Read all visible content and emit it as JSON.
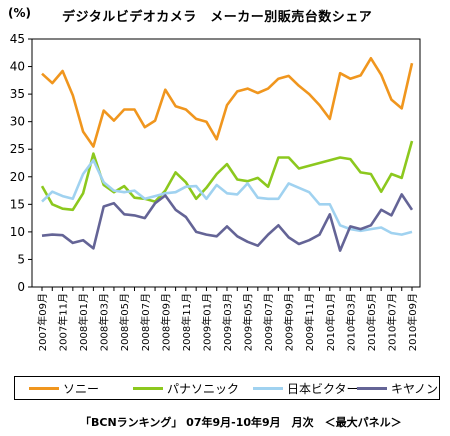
{
  "unit_label": "(%)",
  "chart_data": {
    "type": "line",
    "title": "デジタルビデオカメラ　メーカー別販売台数シェア",
    "ylim": [
      0,
      45
    ],
    "yticks": [
      0,
      5,
      10,
      15,
      20,
      25,
      30,
      35,
      40,
      45
    ],
    "grid": false,
    "legend_position": "bottom",
    "x": [
      "2007年09月",
      "2007年10月",
      "2007年11月",
      "2007年12月",
      "2008年01月",
      "2008年02月",
      "2008年03月",
      "2008年04月",
      "2008年05月",
      "2008年06月",
      "2008年07月",
      "2008年08月",
      "2008年09月",
      "2008年10月",
      "2008年11月",
      "2008年12月",
      "2009年01月",
      "2009年02月",
      "2009年03月",
      "2009年04月",
      "2009年05月",
      "2009年06月",
      "2009年07月",
      "2009年08月",
      "2009年09月",
      "2009年10月",
      "2009年11月",
      "2009年12月",
      "2010年01月",
      "2010年02月",
      "2010年03月",
      "2010年04月",
      "2010年05月",
      "2010年06月",
      "2010年07月",
      "2010年08月",
      "2010年09月"
    ],
    "x_tick_labels": [
      "2007年09月",
      "2007年11月",
      "2008年01月",
      "2008年03月",
      "2008年05月",
      "2008年07月",
      "2008年09月",
      "2008年11月",
      "2009年01月",
      "2009年03月",
      "2009年05月",
      "2009年07月",
      "2009年09月",
      "2009年11月",
      "2010年01月",
      "2010年03月",
      "2010年05月",
      "2010年07月",
      "2010年09月"
    ],
    "series": [
      {
        "name": "ソニー",
        "color": "#f0961e",
        "values": [
          38.7,
          37.0,
          39.2,
          34.8,
          28.2,
          25.5,
          32.0,
          30.2,
          32.2,
          32.2,
          29.0,
          30.2,
          35.8,
          32.8,
          32.2,
          30.5,
          30.0,
          26.8,
          33.0,
          35.5,
          36.0,
          35.2,
          36.0,
          37.8,
          38.3,
          36.5,
          35.0,
          33.0,
          30.5,
          38.8,
          37.8,
          38.4,
          41.5,
          38.5,
          34.0,
          32.4,
          40.6
        ]
      },
      {
        "name": "パナソニック",
        "color": "#8cc81e",
        "values": [
          18.3,
          15.0,
          14.2,
          14.0,
          17.0,
          24.2,
          18.5,
          17.2,
          18.3,
          16.2,
          16.0,
          15.5,
          17.5,
          20.8,
          19.0,
          16.0,
          18.0,
          20.5,
          22.3,
          19.5,
          19.2,
          19.8,
          18.2,
          23.5,
          23.5,
          21.5,
          22.0,
          22.5,
          23.0,
          23.5,
          23.2,
          20.8,
          20.5,
          17.3,
          20.5,
          19.8,
          26.5
        ]
      },
      {
        "name": "日本ビクター",
        "color": "#a0d2f0",
        "values": [
          15.5,
          17.3,
          16.5,
          16.0,
          20.5,
          23.0,
          19.0,
          17.5,
          17.2,
          17.5,
          16.0,
          16.5,
          17.0,
          17.2,
          18.2,
          18.3,
          16.0,
          18.5,
          17.0,
          16.8,
          18.8,
          16.2,
          16.0,
          16.0,
          18.8,
          18.0,
          17.2,
          15.0,
          15.0,
          11.2,
          10.5,
          10.2,
          10.5,
          10.8,
          9.8,
          9.5,
          10.0
        ]
      },
      {
        "name": "キヤノン",
        "color": "#646496",
        "values": [
          9.3,
          9.5,
          9.4,
          8.0,
          8.5,
          7.0,
          14.6,
          15.2,
          13.2,
          13.0,
          12.5,
          15.2,
          16.6,
          14.0,
          12.7,
          10.0,
          9.5,
          9.2,
          11.0,
          9.2,
          8.2,
          7.5,
          9.5,
          11.2,
          9.0,
          7.8,
          8.5,
          9.5,
          13.2,
          6.6,
          11.0,
          10.5,
          11.2,
          14.0,
          13.0,
          16.8,
          14.0
        ]
      }
    ]
  },
  "footnote": "「BCNランキング」 07年9月-10年9月　月次　＜最大パネル＞"
}
